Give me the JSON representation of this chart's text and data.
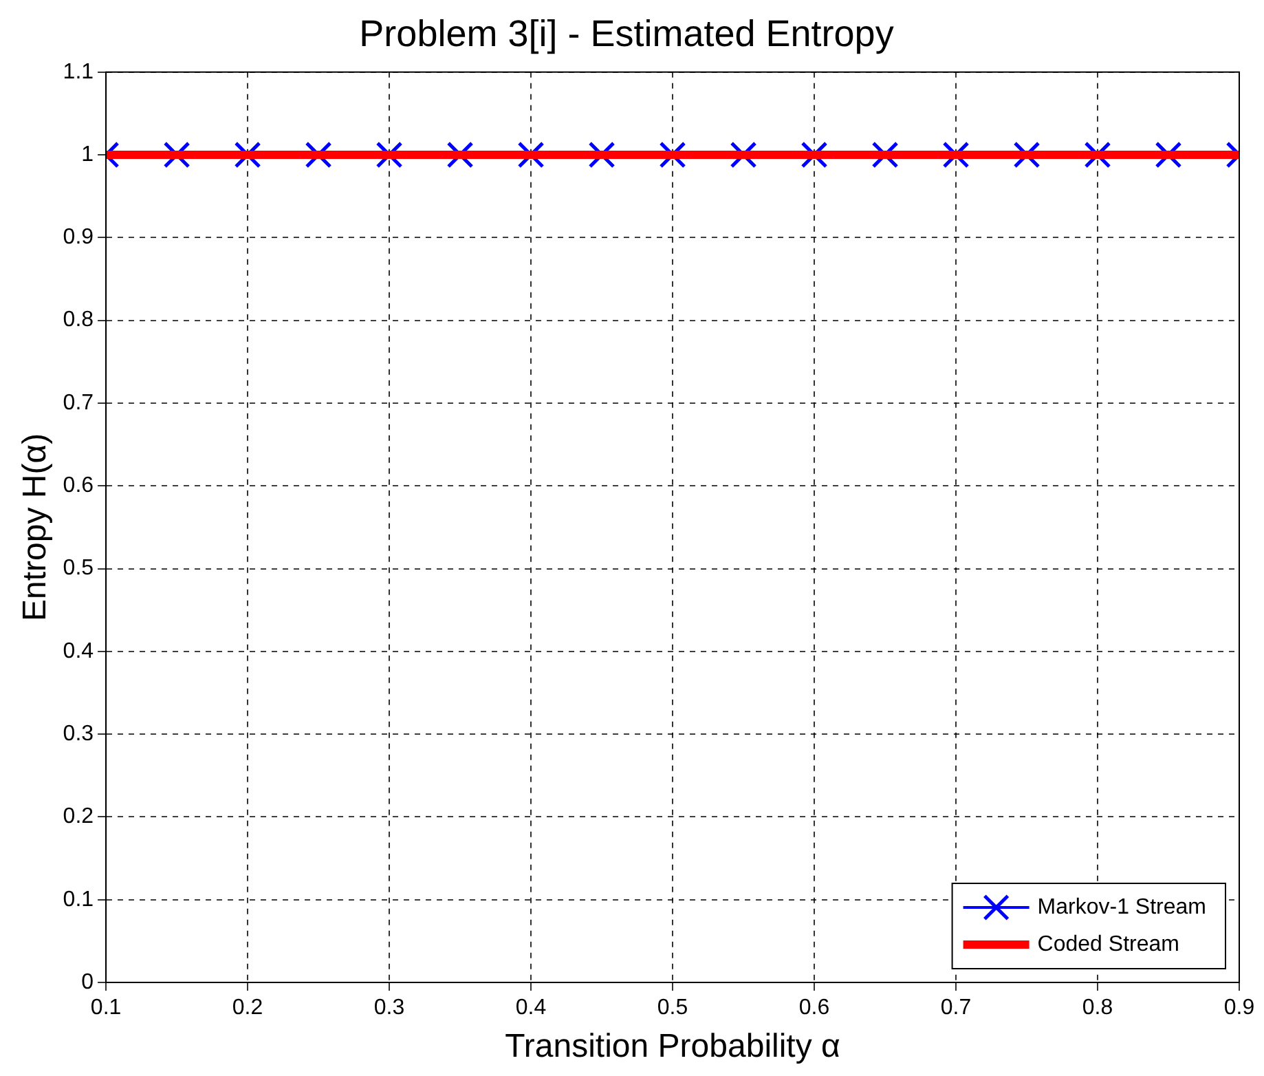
{
  "chart_data": {
    "type": "line",
    "title": "Problem 3[i] - Estimated Entropy",
    "xlabel": "Transition Probability α",
    "ylabel": "Entropy H(α)",
    "x": [
      0.1,
      0.15,
      0.2,
      0.25,
      0.3,
      0.35,
      0.4,
      0.45,
      0.5,
      0.55,
      0.6,
      0.65,
      0.7,
      0.75,
      0.8,
      0.85,
      0.9
    ],
    "series": [
      {
        "name": "Markov-1 Stream",
        "color": "#0000ff",
        "marker": "cross",
        "values": [
          1,
          1,
          1,
          1,
          1,
          1,
          1,
          1,
          1,
          1,
          1,
          1,
          1,
          1,
          1,
          1,
          1
        ]
      },
      {
        "name": "Coded Stream",
        "color": "#ff0000",
        "marker": "none",
        "values": [
          1,
          1,
          1,
          1,
          1,
          1,
          1,
          1,
          1,
          1,
          1,
          1,
          1,
          1,
          1,
          1,
          1
        ]
      }
    ],
    "xlim": [
      0.1,
      0.9
    ],
    "xticks": [
      0.1,
      0.2,
      0.3,
      0.4,
      0.5,
      0.6,
      0.7,
      0.8,
      0.9
    ],
    "ylim": [
      0,
      1.1
    ],
    "yticks": [
      0,
      0.1,
      0.2,
      0.3,
      0.4,
      0.5,
      0.6,
      0.7,
      0.8,
      0.9,
      1,
      1.1
    ],
    "grid": true,
    "legend": "bottom right",
    "line_style": "solid"
  }
}
